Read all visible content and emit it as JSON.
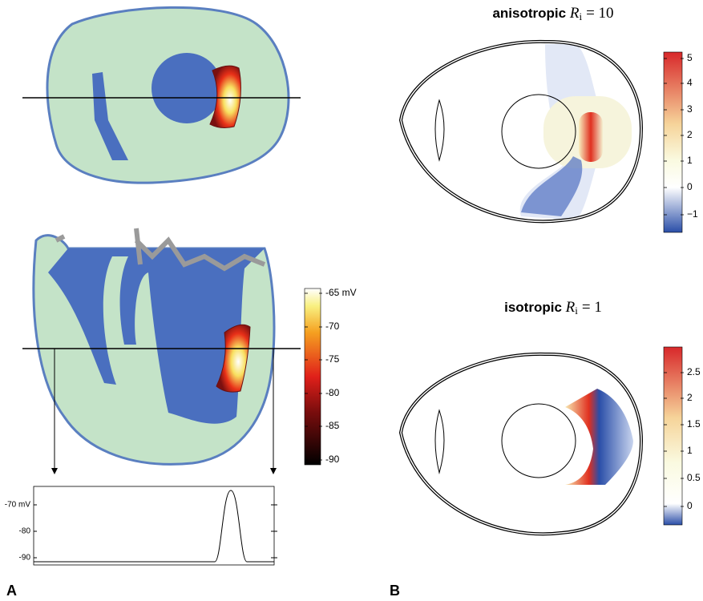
{
  "panel_a": {
    "label": "A",
    "colorbar_ticks": [
      "-65 mV",
      "-70",
      "-75",
      "-80",
      "-85",
      "-90"
    ],
    "trace_ticks": [
      "-70 mV",
      "-80",
      "-90"
    ]
  },
  "panel_b": {
    "label": "B",
    "top": {
      "word": "anisotropic",
      "symbol": "R",
      "subscript": "i",
      "equals": "= 10",
      "colorbar_ticks": [
        "5",
        "4",
        "3",
        "2",
        "1",
        "0",
        "−1"
      ]
    },
    "bottom": {
      "word": "isotropic",
      "symbol": "R",
      "subscript": "i",
      "equals": "= 1",
      "colorbar_ticks": [
        "2.5",
        "2",
        "1.5",
        "1",
        "0.5",
        "0"
      ]
    }
  }
}
